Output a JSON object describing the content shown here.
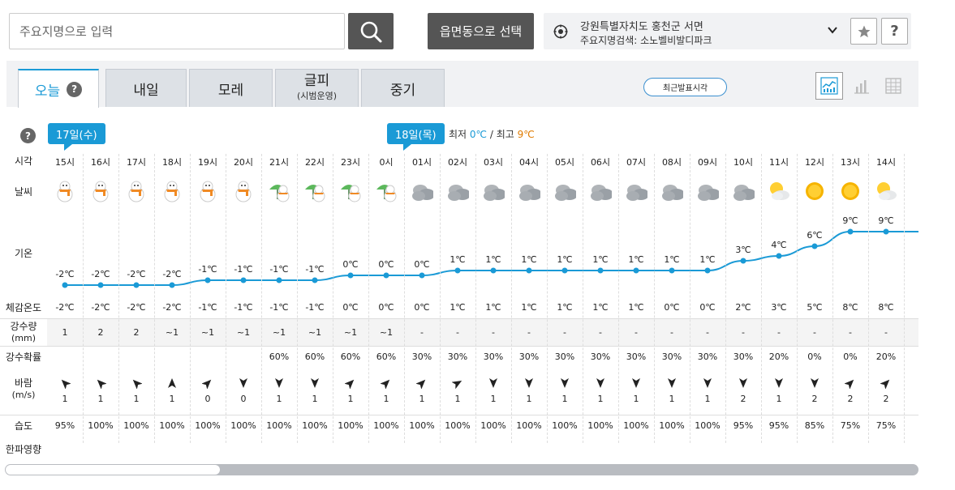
{
  "search": {
    "placeholder": "주요지명으로 입력"
  },
  "select_button": "읍면동으로 선택",
  "location": {
    "line1": "강원특별자치도 홍천군 서면",
    "line2": "주요지명검색: 소노벨비발디파크"
  },
  "icons": {
    "search": "search-icon",
    "star": "star-icon",
    "help": "help-icon",
    "gps": "gps-icon"
  },
  "help_label": "?",
  "tabs": [
    {
      "label": "오늘",
      "sub": ""
    },
    {
      "label": "내일",
      "sub": ""
    },
    {
      "label": "모레",
      "sub": ""
    },
    {
      "label": "글피",
      "sub": "(시범운영)"
    },
    {
      "label": "중기",
      "sub": ""
    }
  ],
  "recent_button": "최근발표시각",
  "day_labels": {
    "d1": "17일(수)",
    "d2": "18일(목)"
  },
  "minmax": {
    "min_label": "최저",
    "min": "0℃",
    "sep": "/",
    "max_label": "최고",
    "max": "9℃"
  },
  "row_labels": {
    "time": "시각",
    "weather": "날씨",
    "temp": "기온",
    "feels": "체감온도",
    "precip": "강수량",
    "precip_unit": "(mm)",
    "prob": "강수확률",
    "wind": "바람",
    "wind_unit": "(m/s)",
    "humidity": "습도",
    "cold": "한파영향"
  },
  "hours": [
    {
      "time": "15시",
      "weather": "snow",
      "temp": -2,
      "feels": "-2℃",
      "precip": "1",
      "prob": "",
      "wind_dir": 315,
      "wind": "1",
      "hum": "95%"
    },
    {
      "time": "16시",
      "weather": "snow",
      "temp": -2,
      "feels": "-2℃",
      "precip": "2",
      "prob": "",
      "wind_dir": 315,
      "wind": "1",
      "hum": "100%"
    },
    {
      "time": "17시",
      "weather": "snow",
      "temp": -2,
      "feels": "-2℃",
      "precip": "2",
      "prob": "",
      "wind_dir": 315,
      "wind": "1",
      "hum": "100%"
    },
    {
      "time": "18시",
      "weather": "snow",
      "temp": -2,
      "feels": "-2℃",
      "precip": "~1",
      "prob": "",
      "wind_dir": 0,
      "wind": "1",
      "hum": "100%"
    },
    {
      "time": "19시",
      "weather": "snow",
      "temp": -1,
      "feels": "-1℃",
      "precip": "~1",
      "prob": "",
      "wind_dir": 45,
      "wind": "0",
      "hum": "100%"
    },
    {
      "time": "20시",
      "weather": "snow",
      "temp": -1,
      "feels": "-1℃",
      "precip": "~1",
      "prob": "",
      "wind_dir": 180,
      "wind": "0",
      "hum": "100%"
    },
    {
      "time": "21시",
      "weather": "snow-umbrella",
      "temp": -1,
      "feels": "-1℃",
      "precip": "~1",
      "prob": "60%",
      "wind_dir": 180,
      "wind": "1",
      "hum": "100%"
    },
    {
      "time": "22시",
      "weather": "snow-umbrella",
      "temp": -1,
      "feels": "-1℃",
      "precip": "~1",
      "prob": "60%",
      "wind_dir": 180,
      "wind": "1",
      "hum": "100%"
    },
    {
      "time": "23시",
      "weather": "snow-umbrella",
      "temp": 0,
      "feels": "0℃",
      "precip": "~1",
      "prob": "60%",
      "wind_dir": 45,
      "wind": "1",
      "hum": "100%"
    },
    {
      "time": "0시",
      "weather": "snow-umbrella",
      "temp": 0,
      "feels": "0℃",
      "precip": "~1",
      "prob": "60%",
      "wind_dir": 45,
      "wind": "1",
      "hum": "100%"
    },
    {
      "time": "01시",
      "weather": "cloudy",
      "temp": 0,
      "feels": "0℃",
      "precip": "-",
      "prob": "30%",
      "wind_dir": 45,
      "wind": "1",
      "hum": "100%"
    },
    {
      "time": "02시",
      "weather": "cloudy",
      "temp": 1,
      "feels": "1℃",
      "precip": "-",
      "prob": "30%",
      "wind_dir": 60,
      "wind": "1",
      "hum": "100%"
    },
    {
      "time": "03시",
      "weather": "cloudy",
      "temp": 1,
      "feels": "1℃",
      "precip": "-",
      "prob": "30%",
      "wind_dir": 180,
      "wind": "1",
      "hum": "100%"
    },
    {
      "time": "04시",
      "weather": "cloudy",
      "temp": 1,
      "feels": "1℃",
      "precip": "-",
      "prob": "30%",
      "wind_dir": 180,
      "wind": "1",
      "hum": "100%"
    },
    {
      "time": "05시",
      "weather": "cloudy",
      "temp": 1,
      "feels": "1℃",
      "precip": "-",
      "prob": "30%",
      "wind_dir": 180,
      "wind": "1",
      "hum": "100%"
    },
    {
      "time": "06시",
      "weather": "cloudy",
      "temp": 1,
      "feels": "1℃",
      "precip": "-",
      "prob": "30%",
      "wind_dir": 180,
      "wind": "1",
      "hum": "100%"
    },
    {
      "time": "07시",
      "weather": "cloudy",
      "temp": 1,
      "feels": "1℃",
      "precip": "-",
      "prob": "30%",
      "wind_dir": 180,
      "wind": "1",
      "hum": "100%"
    },
    {
      "time": "08시",
      "weather": "cloudy",
      "temp": 1,
      "feels": "0℃",
      "precip": "-",
      "prob": "30%",
      "wind_dir": 180,
      "wind": "1",
      "hum": "100%"
    },
    {
      "time": "09시",
      "weather": "cloudy",
      "temp": 1,
      "feels": "0℃",
      "precip": "-",
      "prob": "30%",
      "wind_dir": 180,
      "wind": "1",
      "hum": "100%"
    },
    {
      "time": "10시",
      "weather": "cloudy",
      "temp": 3,
      "feels": "2℃",
      "precip": "-",
      "prob": "30%",
      "wind_dir": 180,
      "wind": "2",
      "hum": "95%"
    },
    {
      "time": "11시",
      "weather": "partly",
      "temp": 4,
      "feels": "3℃",
      "precip": "-",
      "prob": "20%",
      "wind_dir": 180,
      "wind": "1",
      "hum": "95%"
    },
    {
      "time": "12시",
      "weather": "sunny",
      "temp": 6,
      "feels": "5℃",
      "precip": "-",
      "prob": "0%",
      "wind_dir": 180,
      "wind": "2",
      "hum": "85%"
    },
    {
      "time": "13시",
      "weather": "sunny",
      "temp": 9,
      "feels": "8℃",
      "precip": "-",
      "prob": "0%",
      "wind_dir": 45,
      "wind": "2",
      "hum": "75%"
    },
    {
      "time": "14시",
      "weather": "partly",
      "temp": 9,
      "feels": "8℃",
      "precip": "-",
      "prob": "20%",
      "wind_dir": 45,
      "wind": "2",
      "hum": "75%"
    }
  ]
}
